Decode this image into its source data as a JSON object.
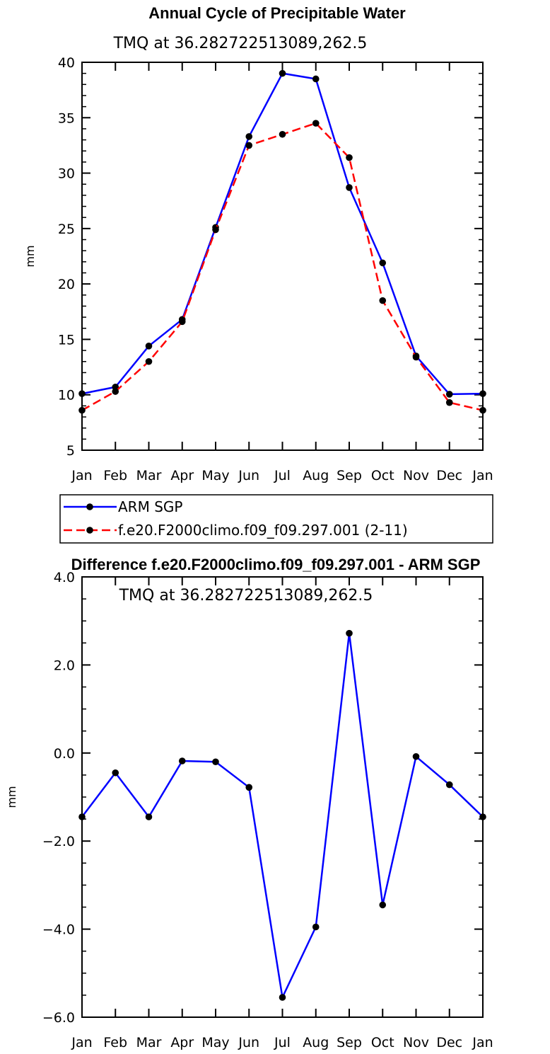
{
  "chart_data": [
    {
      "type": "line",
      "title": "Annual Cycle of Precipitable Water",
      "subtitle": "TMQ at 36.282722513089,262.5",
      "xlabel": "",
      "ylabel": "mm",
      "categories": [
        "Jan",
        "Feb",
        "Mar",
        "Apr",
        "May",
        "Jun",
        "Jul",
        "Aug",
        "Sep",
        "Oct",
        "Nov",
        "Dec",
        "Jan"
      ],
      "ylim": [
        5,
        40
      ],
      "yticks": [
        5,
        10,
        15,
        20,
        25,
        30,
        35,
        40
      ],
      "ytick_labels": [
        "5",
        "10",
        "15",
        "20",
        "25",
        "30",
        "35",
        "40"
      ],
      "series": [
        {
          "name": "ARM SGP",
          "color": "#0000ff",
          "dash": "solid",
          "values": [
            10.1,
            10.7,
            14.4,
            16.8,
            25.1,
            33.3,
            39.0,
            38.5,
            28.7,
            21.9,
            13.5,
            10.05,
            10.1
          ]
        },
        {
          "name": "f.e20.F2000climo.f09_f09.297.001 (2-11)",
          "color": "#ff0000",
          "dash": "dashed",
          "values": [
            8.6,
            10.3,
            13.0,
            16.6,
            24.9,
            32.5,
            33.5,
            34.5,
            31.4,
            18.5,
            13.4,
            9.3,
            8.6
          ]
        }
      ],
      "legend": {
        "items": [
          "ARM SGP",
          "f.e20.F2000climo.f09_f09.297.001 (2-11)"
        ],
        "placement": "below"
      }
    },
    {
      "type": "line",
      "title": "Difference f.e20.F2000climo.f09_f09.297.001 - ARM SGP",
      "subtitle": "TMQ at 36.282722513089,262.5",
      "xlabel": "",
      "ylabel": "mm",
      "categories": [
        "Jan",
        "Feb",
        "Mar",
        "Apr",
        "May",
        "Jun",
        "Jul",
        "Aug",
        "Sep",
        "Oct",
        "Nov",
        "Dec",
        "Jan"
      ],
      "ylim": [
        -6,
        4
      ],
      "yticks": [
        -6,
        -4,
        -2,
        0,
        2,
        4
      ],
      "ytick_labels": [
        "−6.0",
        "−4.0",
        "−2.0",
        "0.0",
        "2.0",
        "4.0"
      ],
      "series": [
        {
          "name": "Difference",
          "color": "#0000ff",
          "dash": "solid",
          "values": [
            -1.45,
            -0.45,
            -1.45,
            -0.18,
            -0.2,
            -0.78,
            -5.55,
            -3.95,
            2.72,
            -3.45,
            -0.08,
            -0.72,
            -1.45
          ]
        }
      ]
    }
  ]
}
